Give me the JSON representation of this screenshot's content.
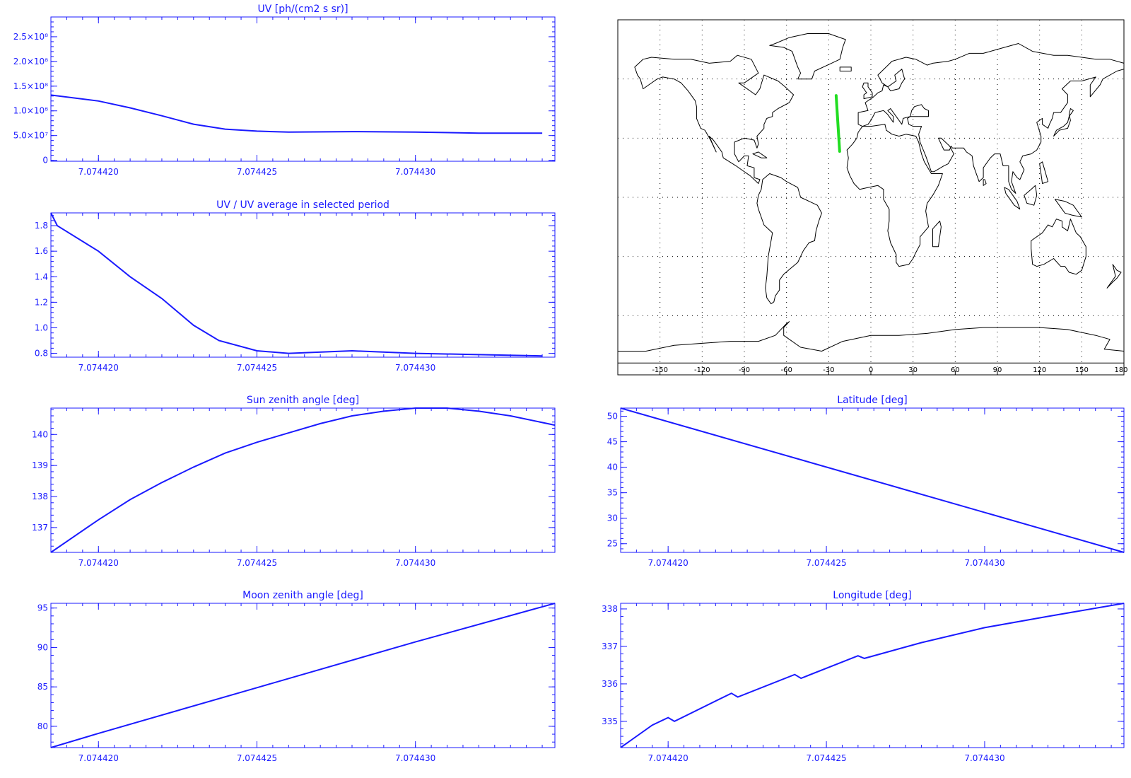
{
  "colors": {
    "axis": "#1a1aff",
    "series": "#1a1aff",
    "track": "#22dd22",
    "map_line": "#000000",
    "grid": "#000000"
  },
  "chart_data": [
    {
      "id": "uv",
      "type": "line",
      "title": "UV [ph/(cm2 s sr)]",
      "xlim": [
        7.0744185,
        7.0744344
      ],
      "ylim": [
        -2000000,
        290000000
      ],
      "x_ticks": [
        7.07442,
        7.074425,
        7.07443
      ],
      "x_tick_labels": [
        "7.074420",
        "7.074425",
        "7.074430"
      ],
      "y_ticks": [
        0,
        50000000,
        100000000,
        150000000,
        200000000,
        250000000
      ],
      "y_tick_labels": [
        "0",
        "5.0×10⁷",
        "1.0×10⁸",
        "1.5×10⁸",
        "2.0×10⁸",
        "2.5×10⁸"
      ],
      "x": [
        7.0744185,
        7.07442,
        7.074421,
        7.074422,
        7.074423,
        7.074424,
        7.074425,
        7.074426,
        7.074428,
        7.07443,
        7.074432,
        7.074434
      ],
      "y": [
        132000000,
        120000000,
        106000000,
        90000000,
        73000000,
        63000000,
        59000000,
        57000000,
        58000000,
        57000000,
        55000000,
        55000000
      ]
    },
    {
      "id": "uv-ratio",
      "type": "line",
      "title": "UV / UV average in selected period",
      "xlim": [
        7.0744185,
        7.0744344
      ],
      "ylim": [
        0.77,
        1.9
      ],
      "x_ticks": [
        7.07442,
        7.074425,
        7.07443
      ],
      "x_tick_labels": [
        "7.074420",
        "7.074425",
        "7.074430"
      ],
      "y_ticks": [
        0.8,
        1.0,
        1.2,
        1.4,
        1.6,
        1.8
      ],
      "y_tick_labels": [
        "0.8",
        "1.0",
        "1.2",
        "1.4",
        "1.6",
        "1.8"
      ],
      "x": [
        7.0744185,
        7.0744187,
        7.07442,
        7.074421,
        7.074422,
        7.074423,
        7.0744238,
        7.074425,
        7.074426,
        7.074428,
        7.07443,
        7.074432,
        7.074434
      ],
      "y": [
        1.9,
        1.8,
        1.6,
        1.4,
        1.23,
        1.02,
        0.9,
        0.82,
        0.8,
        0.82,
        0.8,
        0.79,
        0.78
      ]
    },
    {
      "id": "sun-zenith",
      "type": "line",
      "title": "Sun zenith angle [deg]",
      "xlim": [
        7.0744185,
        7.0744344
      ],
      "ylim": [
        136.2,
        140.85
      ],
      "x_ticks": [
        7.07442,
        7.074425,
        7.07443
      ],
      "x_tick_labels": [
        "7.074420",
        "7.074425",
        "7.074430"
      ],
      "y_ticks": [
        137,
        138,
        139,
        140
      ],
      "y_tick_labels": [
        "137",
        "138",
        "139",
        "140"
      ],
      "x": [
        7.0744185,
        7.07442,
        7.074421,
        7.074422,
        7.074423,
        7.074424,
        7.074425,
        7.074426,
        7.074427,
        7.074428,
        7.074429,
        7.07443,
        7.074431,
        7.074432,
        7.074433,
        7.0744344
      ],
      "y": [
        136.2,
        137.25,
        137.9,
        138.45,
        138.95,
        139.4,
        139.75,
        140.05,
        140.35,
        140.6,
        140.75,
        140.85,
        140.85,
        140.75,
        140.6,
        140.3
      ]
    },
    {
      "id": "latitude",
      "type": "line",
      "title": "Latitude [deg]",
      "xlim": [
        7.0744185,
        7.0744344
      ],
      "ylim": [
        23.3,
        51.6
      ],
      "x_ticks": [
        7.07442,
        7.074425,
        7.07443
      ],
      "x_tick_labels": [
        "7.074420",
        "7.074425",
        "7.074430"
      ],
      "y_ticks": [
        25,
        30,
        35,
        40,
        45,
        50
      ],
      "y_tick_labels": [
        "25",
        "30",
        "35",
        "40",
        "45",
        "50"
      ],
      "x": [
        7.0744185,
        7.0744344
      ],
      "y": [
        51.6,
        23.3
      ]
    },
    {
      "id": "moon-zenith",
      "type": "line",
      "title": "Moon zenith angle [deg]",
      "xlim": [
        7.0744185,
        7.0744344
      ],
      "ylim": [
        77.3,
        95.6
      ],
      "x_ticks": [
        7.07442,
        7.074425,
        7.07443
      ],
      "x_tick_labels": [
        "7.074420",
        "7.074425",
        "7.074430"
      ],
      "y_ticks": [
        80,
        85,
        90,
        95
      ],
      "y_tick_labels": [
        "80",
        "85",
        "90",
        "95"
      ],
      "x": [
        7.0744185,
        7.07442,
        7.074425,
        7.07443,
        7.0744344
      ],
      "y": [
        77.3,
        79.1,
        84.9,
        90.7,
        95.6
      ]
    },
    {
      "id": "longitude",
      "type": "line",
      "title": "Longitude [deg]",
      "xlim": [
        7.0744185,
        7.0744344
      ],
      "ylim": [
        334.3,
        338.15
      ],
      "x_ticks": [
        7.07442,
        7.074425,
        7.07443
      ],
      "x_tick_labels": [
        "7.074420",
        "7.074425",
        "7.074430"
      ],
      "y_ticks": [
        335,
        336,
        337,
        338
      ],
      "y_tick_labels": [
        "335",
        "336",
        "337",
        "338"
      ],
      "x": [
        7.0744185,
        7.0744195,
        7.07442,
        7.0744202,
        7.074422,
        7.0744222,
        7.074424,
        7.0744242,
        7.074426,
        7.0744262,
        7.074428,
        7.07443,
        7.074432,
        7.0744344
      ],
      "y": [
        334.3,
        334.9,
        335.1,
        335.0,
        335.75,
        335.65,
        336.25,
        336.15,
        336.75,
        336.68,
        337.1,
        337.5,
        337.8,
        338.15
      ]
    }
  ],
  "map": {
    "lon_ticks": [
      -150,
      -120,
      -90,
      -60,
      -30,
      0,
      30,
      60,
      90,
      120,
      150,
      180
    ],
    "lon_tick_labels": [
      "-150",
      "-120",
      "-90",
      "-60",
      "-30",
      "0",
      "30",
      "60",
      "90",
      "120",
      "150",
      "180"
    ],
    "grid_lat": [
      -60,
      -30,
      0,
      30,
      60
    ],
    "track": [
      [
        -24.7,
        51.6
      ],
      [
        -22.2,
        23.3
      ]
    ]
  }
}
